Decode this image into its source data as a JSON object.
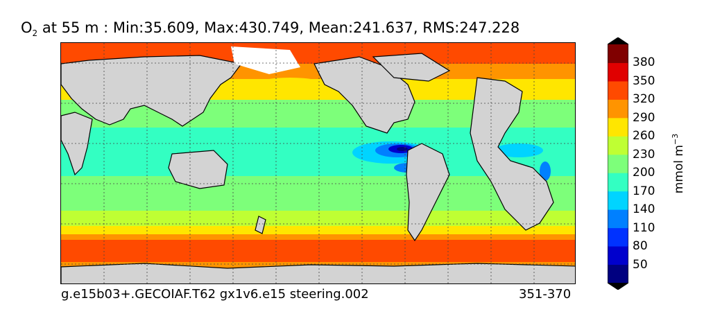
{
  "title": {
    "variable": "O",
    "subscript": "2",
    "rest": " at 55 m : Min:35.609, Max:430.749, Mean:241.637, RMS:247.228"
  },
  "footer": {
    "case_name": "g.e15b03+.GECOIAF.T62 gx1v6.e15 steering.002",
    "years": "351-370"
  },
  "colorbar": {
    "unit_base": "mmol m",
    "unit_exp": "−3",
    "ticks": [
      "50",
      "80",
      "110",
      "140",
      "170",
      "200",
      "230",
      "260",
      "290",
      "320",
      "350",
      "380"
    ],
    "levels": [
      {
        "color": "#000080"
      },
      {
        "color": "#0000cd"
      },
      {
        "color": "#0032ff"
      },
      {
        "color": "#0080ff"
      },
      {
        "color": "#00d4ff"
      },
      {
        "color": "#33ffc2"
      },
      {
        "color": "#7dff7a"
      },
      {
        "color": "#bfff33"
      },
      {
        "color": "#ffe600"
      },
      {
        "color": "#ff9400"
      },
      {
        "color": "#ff4a00"
      },
      {
        "color": "#e00000"
      },
      {
        "color": "#800000"
      }
    ]
  },
  "map_colors": {
    "land": "#d3d3d3",
    "sea_ice": "#ffffff"
  }
}
